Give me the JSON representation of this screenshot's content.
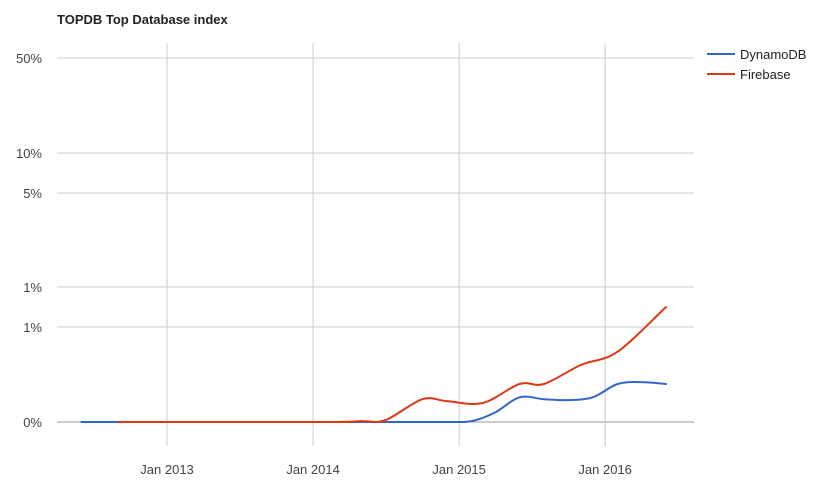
{
  "chart_data": {
    "type": "line",
    "title": "TOPDB Top Database index",
    "xlabel": "",
    "ylabel": "",
    "y_scale": "log",
    "grid": true,
    "legend_position": "top-right",
    "x_ticks": [
      "Jan 2013",
      "Jan 2014",
      "Jan 2015",
      "Jan 2016"
    ],
    "y_ticks": [
      {
        "value": 50,
        "label": "50%"
      },
      {
        "value": 10,
        "label": "10%"
      },
      {
        "value": 5,
        "label": "5%"
      },
      {
        "value": 1,
        "label": "1%"
      },
      {
        "value": 0.5,
        "label": "1%"
      },
      {
        "value": 0,
        "label": "0%"
      }
    ],
    "series": [
      {
        "name": "DynamoDB",
        "color": "#3366cc",
        "points": [
          {
            "x": "2012-06",
            "y": 0
          },
          {
            "x": "2012-12",
            "y": 0
          },
          {
            "x": "2013-06",
            "y": 0
          },
          {
            "x": "2013-12",
            "y": 0
          },
          {
            "x": "2014-06",
            "y": 0
          },
          {
            "x": "2014-12",
            "y": 0
          },
          {
            "x": "2015-02",
            "y": -0.005
          },
          {
            "x": "2015-04",
            "y": 0.05
          },
          {
            "x": "2015-06",
            "y": 0.13
          },
          {
            "x": "2015-08",
            "y": 0.12
          },
          {
            "x": "2015-10",
            "y": 0.115
          },
          {
            "x": "2015-12",
            "y": 0.13
          },
          {
            "x": "2016-02",
            "y": 0.2
          },
          {
            "x": "2016-04",
            "y": 0.21
          },
          {
            "x": "2016-06",
            "y": 0.2
          }
        ]
      },
      {
        "name": "Firebase",
        "color": "#dc3912",
        "points": [
          {
            "x": "2012-09",
            "y": 0
          },
          {
            "x": "2013-06",
            "y": 0
          },
          {
            "x": "2014-03",
            "y": 0
          },
          {
            "x": "2014-05",
            "y": -0.005
          },
          {
            "x": "2014-07",
            "y": 0.01
          },
          {
            "x": "2014-10",
            "y": 0.12
          },
          {
            "x": "2014-12",
            "y": 0.11
          },
          {
            "x": "2015-03",
            "y": 0.1
          },
          {
            "x": "2015-06",
            "y": 0.2
          },
          {
            "x": "2015-08",
            "y": 0.2
          },
          {
            "x": "2015-11",
            "y": 0.3
          },
          {
            "x": "2016-02",
            "y": 0.37
          },
          {
            "x": "2016-06",
            "y": 0.75
          }
        ]
      }
    ]
  }
}
